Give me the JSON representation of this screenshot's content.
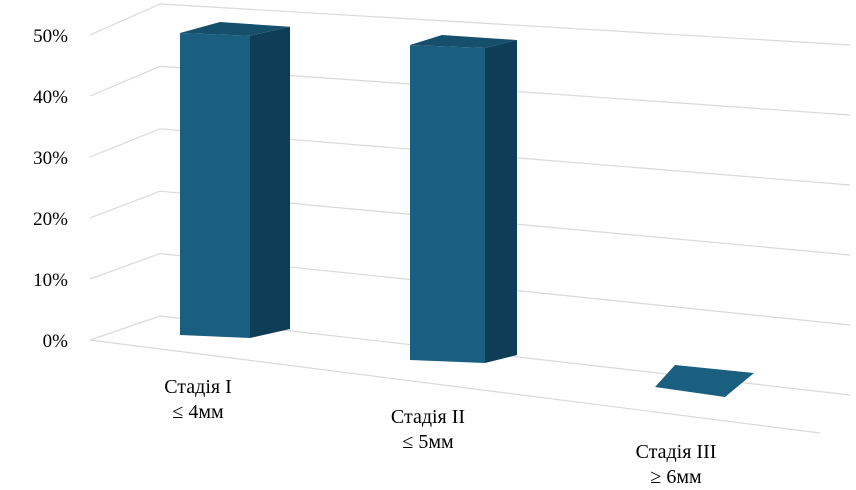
{
  "chart_data": {
    "type": "bar",
    "title": "",
    "xlabel": "",
    "ylabel": "",
    "ylim": [
      0,
      50
    ],
    "yticks": [
      "0%",
      "10%",
      "20%",
      "30%",
      "40%",
      "50%"
    ],
    "grid": true,
    "style": "3d-perspective",
    "categories": [
      {
        "line1": "Стадія I",
        "line2": "≤ 4мм"
      },
      {
        "line1": "Стадія II",
        "line2": "≤ 5мм"
      },
      {
        "line1": "Стадія III",
        "line2": "≥ 6мм"
      }
    ],
    "values": [
      50,
      50,
      0
    ],
    "colors": {
      "front": "#1a5f80",
      "side": "#0e3e57",
      "top": "#164f6b",
      "grid": "#d9d9d9"
    }
  }
}
